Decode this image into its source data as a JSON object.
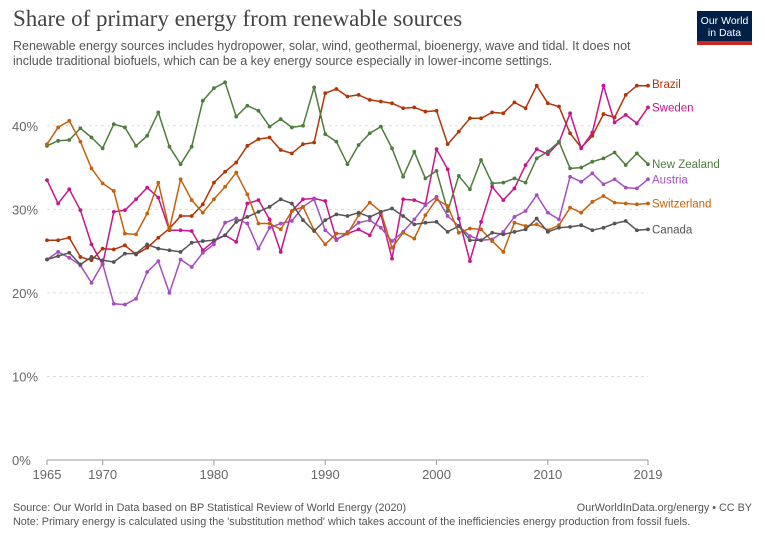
{
  "header": {
    "title": "Share of primary energy from renewable sources",
    "subtitle": "Renewable energy sources includes hydropower, solar, wind, geothermal, bioenergy, wave and tidal. It does not include traditional biofuels, which can be a key energy source especially in lower-income settings.",
    "logo_line1": "Our World",
    "logo_line2": "in Data"
  },
  "footer": {
    "source": "Source: Our World in Data based on BP Statistical Review of World Energy (2020)",
    "note": "Note: Primary energy is calculated using the 'substitution method' which takes account of the inefficiencies energy production from fossil fuels.",
    "credit": "OurWorldInData.org/energy • CC BY"
  },
  "chart_data": {
    "type": "line",
    "title": "Share of primary energy from renewable sources",
    "ylim": [
      0,
      45
    ],
    "yticks": [
      0,
      10,
      20,
      30,
      40
    ],
    "ytick_labels": [
      "0%",
      "10%",
      "20%",
      "30%",
      "40%"
    ],
    "xticks": [
      1965,
      1970,
      1980,
      1990,
      2000,
      2010,
      2019
    ],
    "x_start": 1965,
    "x_end": 2019,
    "grid": true,
    "legend_placement": "right",
    "x": [
      1965,
      1966,
      1967,
      1968,
      1969,
      1970,
      1971,
      1972,
      1973,
      1974,
      1975,
      1976,
      1977,
      1978,
      1979,
      1980,
      1981,
      1982,
      1983,
      1984,
      1985,
      1986,
      1987,
      1988,
      1989,
      1990,
      1991,
      1992,
      1993,
      1994,
      1995,
      1996,
      1997,
      1998,
      1999,
      2000,
      2001,
      2002,
      2003,
      2004,
      2005,
      2006,
      2007,
      2008,
      2009,
      2010,
      2011,
      2012,
      2013,
      2014,
      2015,
      2016,
      2017,
      2018,
      2019
    ],
    "series": [
      {
        "name": "Brazil",
        "color": "#b13507",
        "label_value": 45,
        "values": [
          26.3,
          26.3,
          26.6,
          24.3,
          23.9,
          25.3,
          25.2,
          25.7,
          24.6,
          25.4,
          26.6,
          27.7,
          29.2,
          29.2,
          30.6,
          33.2,
          34.5,
          35.6,
          37.6,
          38.4,
          38.6,
          37.1,
          36.7,
          37.8,
          38.0,
          43.9,
          44.4,
          43.5,
          43.7,
          43.1,
          42.9,
          42.7,
          42.1,
          42.2,
          41.7,
          41.8,
          37.8,
          39.3,
          40.9,
          40.9,
          41.6,
          41.5,
          42.8,
          42.1,
          44.8,
          42.7,
          42.3,
          39.1,
          37.4,
          38.8,
          41.4,
          41.0,
          43.7,
          44.8,
          44.8
        ]
      },
      {
        "name": "Sweden",
        "color": "#c7158d",
        "label_value": 42.2,
        "values": [
          33.5,
          30.7,
          32.4,
          29.9,
          25.8,
          23.4,
          29.7,
          29.9,
          31.2,
          32.6,
          31.4,
          27.5,
          27.5,
          27.4,
          25.1,
          26.2,
          26.9,
          26.1,
          30.7,
          31.1,
          28.8,
          24.9,
          29.8,
          31.2,
          31.3,
          31.0,
          26.4,
          27.1,
          27.6,
          26.9,
          29.4,
          24.1,
          31.2,
          31.1,
          30.6,
          37.2,
          34.8,
          28.9,
          23.8,
          28.5,
          32.7,
          31.1,
          32.5,
          35.3,
          37.2,
          36.6,
          38.0,
          41.5,
          37.3,
          39.2,
          44.8,
          40.4,
          41.3,
          40.3,
          42.2
        ]
      },
      {
        "name": "New Zealand",
        "color": "#4f7d3c",
        "label_value": 35.4,
        "values": [
          37.6,
          38.2,
          38.3,
          39.7,
          38.6,
          37.3,
          40.2,
          39.8,
          37.6,
          38.8,
          41.6,
          37.5,
          35.4,
          37.5,
          43.0,
          44.5,
          45.2,
          41.1,
          42.4,
          41.8,
          39.9,
          40.8,
          39.8,
          40.0,
          44.6,
          39.0,
          38.1,
          35.4,
          37.7,
          39.1,
          39.9,
          37.3,
          33.9,
          36.9,
          33.7,
          34.6,
          29.8,
          34.0,
          32.4,
          35.9,
          33.1,
          33.2,
          33.7,
          33.2,
          36.1,
          36.9,
          38.1,
          34.9,
          35.0,
          35.7,
          36.1,
          36.8,
          35.3,
          36.7,
          35.4
        ]
      },
      {
        "name": "Austria",
        "color": "#a34fbd",
        "label_value": 33.6,
        "values": [
          24.0,
          24.9,
          24.2,
          23.3,
          21.2,
          23.5,
          18.7,
          18.6,
          19.3,
          22.5,
          23.8,
          20.0,
          24.0,
          23.1,
          24.8,
          25.8,
          28.4,
          28.9,
          28.3,
          25.3,
          27.8,
          28.3,
          28.6,
          30.3,
          31.2,
          27.5,
          26.3,
          27.3,
          28.4,
          28.7,
          27.8,
          26.2,
          27.3,
          28.8,
          30.5,
          31.5,
          29.2,
          28.0,
          26.8,
          26.3,
          26.4,
          27.3,
          29.1,
          29.8,
          31.7,
          29.6,
          28.8,
          33.9,
          33.3,
          34.3,
          33.0,
          33.6,
          32.6,
          32.5,
          33.6
        ]
      },
      {
        "name": "Switzerland",
        "color": "#c4620e",
        "label_value": 30.7,
        "values": [
          37.8,
          39.8,
          40.6,
          38.1,
          34.9,
          33.1,
          32.2,
          27.1,
          27.0,
          29.5,
          33.2,
          27.6,
          33.6,
          31.1,
          29.6,
          31.2,
          32.7,
          34.4,
          31.8,
          28.3,
          28.3,
          27.6,
          29.8,
          30.3,
          27.5,
          25.8,
          27.1,
          27.1,
          29.3,
          30.8,
          29.7,
          25.4,
          27.2,
          26.5,
          29.3,
          31.2,
          30.4,
          27.2,
          27.7,
          27.6,
          26.2,
          24.9,
          28.4,
          28.0,
          28.2,
          27.5,
          28.1,
          30.2,
          29.6,
          30.9,
          31.6,
          30.8,
          30.7,
          30.6,
          30.7
        ]
      },
      {
        "name": "Canada",
        "color": "#555555",
        "label_value": 27.6,
        "values": [
          24.0,
          24.4,
          24.8,
          23.4,
          24.3,
          23.9,
          23.7,
          24.7,
          24.7,
          25.8,
          25.3,
          25.1,
          24.9,
          26.0,
          26.2,
          26.3,
          26.9,
          28.5,
          29.1,
          29.7,
          30.3,
          31.2,
          30.7,
          28.7,
          27.4,
          28.7,
          29.4,
          29.2,
          29.6,
          29.1,
          29.7,
          30.1,
          29.2,
          28.2,
          28.4,
          28.5,
          27.3,
          28.0,
          26.3,
          26.3,
          27.2,
          27.0,
          27.3,
          27.6,
          28.9,
          27.3,
          27.8,
          27.9,
          28.1,
          27.5,
          27.8,
          28.3,
          28.6,
          27.5,
          27.6
        ]
      }
    ]
  }
}
